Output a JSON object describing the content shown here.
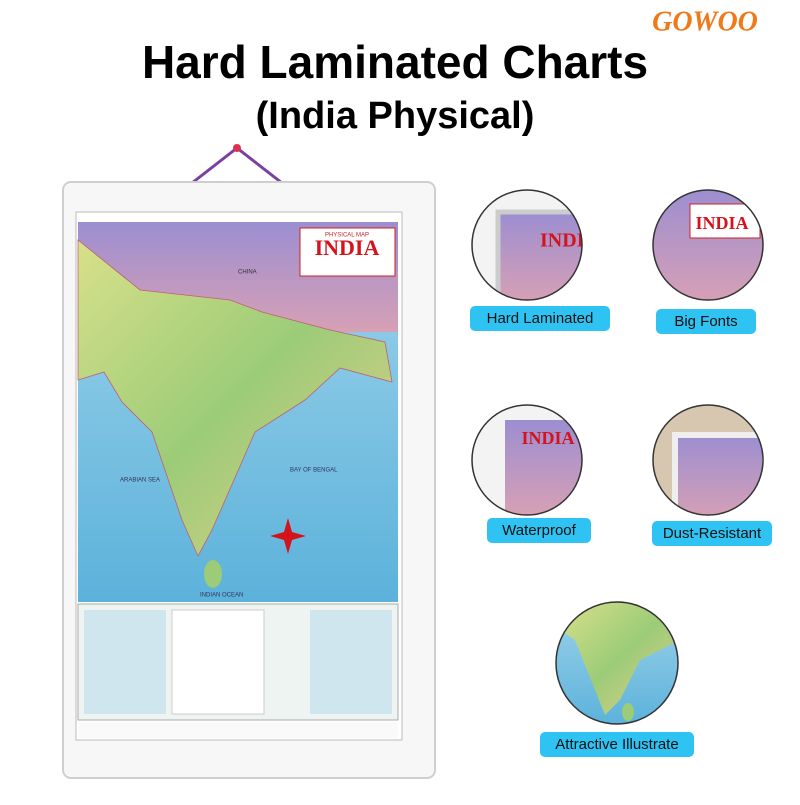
{
  "brand": "GOWOO",
  "header": {
    "title": "Hard Laminated Charts",
    "subtitle": "(India Physical)"
  },
  "poster": {
    "heading": "PHYSICAL MAP",
    "title": "INDIA",
    "labels": [
      "CHINA",
      "ARABIAN SEA",
      "BAY OF BENGAL",
      "INDIAN OCEAN"
    ]
  },
  "features": [
    "Hard Laminated",
    "Big Fonts",
    "Waterproof",
    "Dust-Resistant",
    "Attractive Illustrate"
  ]
}
